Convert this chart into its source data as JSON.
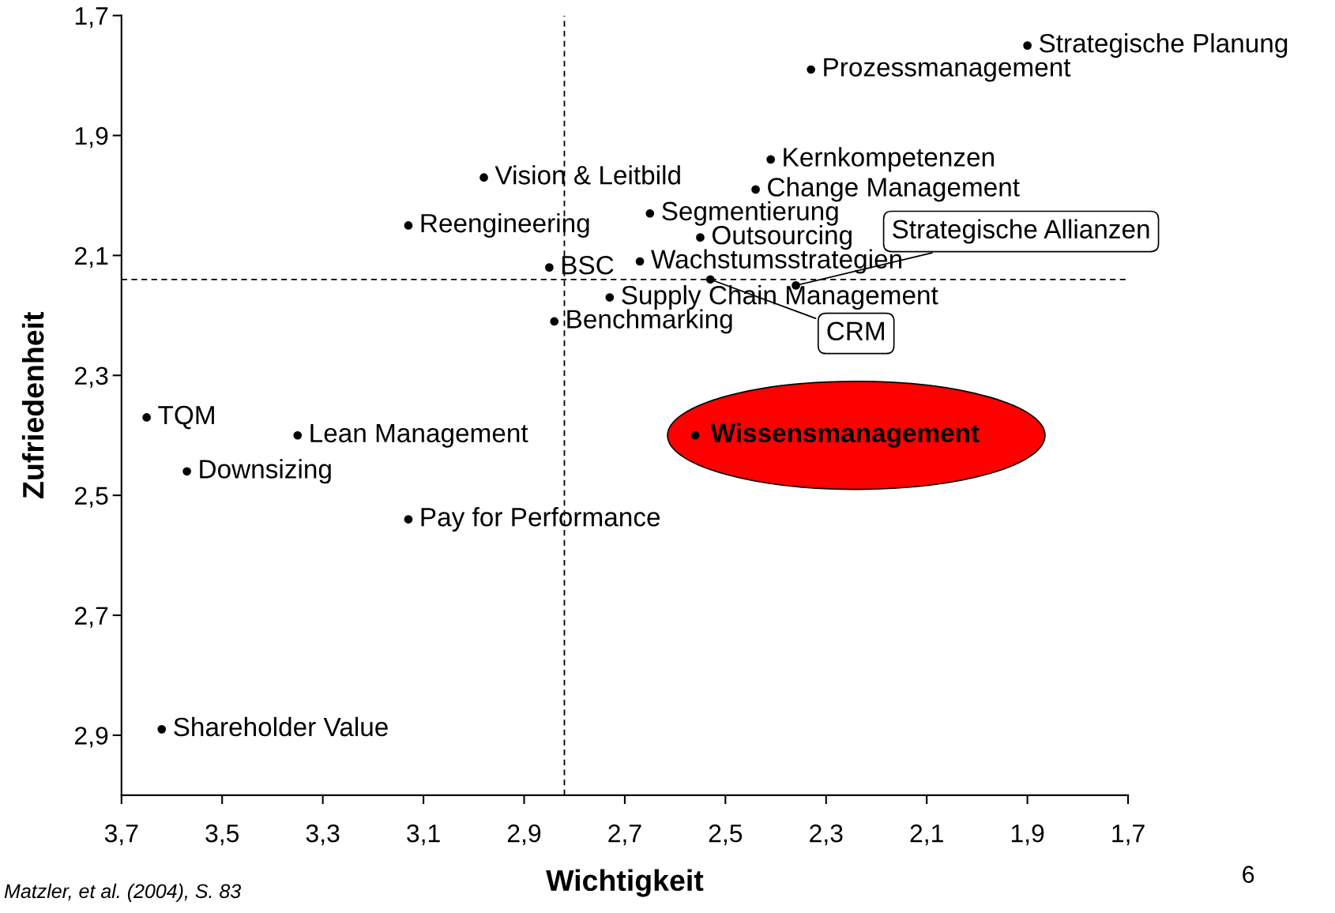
{
  "chart_data": {
    "type": "scatter",
    "xlabel": "Wichtigkeit",
    "ylabel": "Zufriedenheit",
    "xlim": [
      3.7,
      1.7
    ],
    "xticks": [
      {
        "value": 3.7,
        "label": "3,7"
      },
      {
        "value": 3.5,
        "label": "3,5"
      },
      {
        "value": 3.3,
        "label": "3,3"
      },
      {
        "value": 3.1,
        "label": "3,1"
      },
      {
        "value": 2.9,
        "label": "2,9"
      },
      {
        "value": 2.7,
        "label": "2,7"
      },
      {
        "value": 2.5,
        "label": "2,5"
      },
      {
        "value": 2.3,
        "label": "2,3"
      },
      {
        "value": 2.1,
        "label": "2,1"
      },
      {
        "value": 1.9,
        "label": "1,9"
      },
      {
        "value": 1.7,
        "label": "1,7"
      }
    ],
    "ylim": [
      3.0,
      1.7
    ],
    "yticks": [
      {
        "value": 1.7,
        "label": "1,7"
      },
      {
        "value": 1.9,
        "label": "1,9"
      },
      {
        "value": 2.1,
        "label": "2,1"
      },
      {
        "value": 2.3,
        "label": "2,3"
      },
      {
        "value": 2.5,
        "label": "2,5"
      },
      {
        "value": 2.7,
        "label": "2,7"
      },
      {
        "value": 2.9,
        "label": "2,9"
      }
    ],
    "marker": "circle",
    "series": [
      {
        "color": "#000000",
        "x": [
          1.9,
          2.33,
          2.41,
          2.44,
          2.98,
          2.65,
          3.13,
          2.55,
          2.85,
          2.67,
          2.36,
          2.53,
          2.73,
          2.84,
          3.65,
          3.35,
          3.57,
          2.56,
          3.13,
          3.62
        ],
        "values": [
          1.75,
          1.79,
          1.94,
          1.99,
          1.97,
          2.03,
          2.05,
          2.07,
          2.12,
          2.11,
          2.15,
          2.14,
          2.17,
          2.21,
          2.37,
          2.4,
          2.46,
          2.4,
          2.54,
          2.89
        ]
      }
    ],
    "ref_lines": [
      {
        "axis": "x",
        "value": 2.82,
        "line_style": "dashed",
        "color": "#000000"
      },
      {
        "axis": "y",
        "value": 2.14,
        "line_style": "dashed",
        "color": "#000000"
      }
    ],
    "grid": false,
    "legend": false,
    "annotations": [
      {
        "text": "Strategische Planung",
        "x": 1.9,
        "y": 1.75
      },
      {
        "text": "Prozessmanagement",
        "x": 2.33,
        "y": 1.79
      },
      {
        "text": "Kernkompetenzen",
        "x": 2.41,
        "y": 1.94
      },
      {
        "text": "Change Management",
        "x": 2.44,
        "y": 1.99
      },
      {
        "text": "Vision & Leitbild",
        "x": 2.98,
        "y": 1.97
      },
      {
        "text": "Segmentierung",
        "x": 2.65,
        "y": 2.03
      },
      {
        "text": "Reengineering",
        "x": 3.13,
        "y": 2.05
      },
      {
        "text": "Outsourcing",
        "x": 2.55,
        "y": 2.07
      },
      {
        "text": "BSC",
        "x": 2.85,
        "y": 2.12
      },
      {
        "text": "Wachstumsstrategien",
        "x": 2.67,
        "y": 2.11
      },
      {
        "text": "Strategische Allianzen",
        "x": 2.36,
        "y": 2.15
      },
      {
        "text": "CRM",
        "x": 2.53,
        "y": 2.14
      },
      {
        "text": "Supply Chain Management",
        "x": 2.73,
        "y": 2.17
      },
      {
        "text": "Benchmarking",
        "x": 2.84,
        "y": 2.21
      },
      {
        "text": "TQM",
        "x": 3.65,
        "y": 2.37
      },
      {
        "text": "Lean Management",
        "x": 3.35,
        "y": 2.4
      },
      {
        "text": "Downsizing",
        "x": 3.57,
        "y": 2.46
      },
      {
        "text": "Wissensmanagement",
        "x": 2.56,
        "y": 2.4
      },
      {
        "text": "Pay for Performance",
        "x": 3.13,
        "y": 2.54
      },
      {
        "text": "Shareholder Value",
        "x": 3.62,
        "y": 2.89
      },
      "Matzler, et al. (2004), S. 83",
      "6"
    ]
  }
}
